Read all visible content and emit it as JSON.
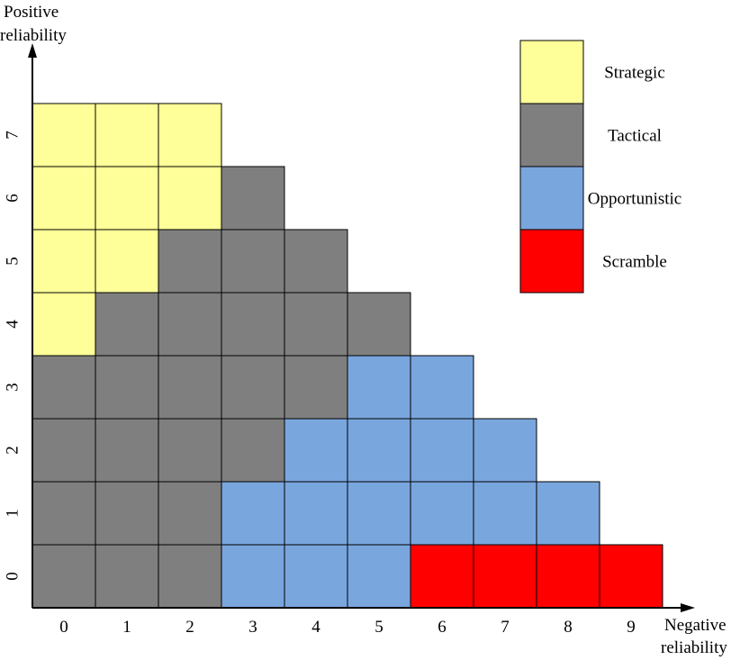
{
  "chart_data": {
    "type": "heatmap",
    "xlabel": [
      "Negative",
      "reliability"
    ],
    "ylabel": [
      "Positive",
      "reliability"
    ],
    "x_ticks": [
      "0",
      "1",
      "2",
      "3",
      "4",
      "5",
      "6",
      "7",
      "8",
      "9"
    ],
    "y_ticks": [
      "0",
      "1",
      "2",
      "3",
      "4",
      "5",
      "6",
      "7"
    ],
    "legend": [
      {
        "name": "Strategic",
        "color": "#ffff99"
      },
      {
        "name": "Tactical",
        "color": "#7f7f7f"
      },
      {
        "name": "Opportunistic",
        "color": "#7aa6de"
      },
      {
        "name": "Scramble",
        "color": "#ff0000"
      }
    ],
    "legend_position": "top-right",
    "rows": [
      {
        "y": 0,
        "cells": [
          "Tactical",
          "Tactical",
          "Tactical",
          "Opportunistic",
          "Opportunistic",
          "Opportunistic",
          "Scramble",
          "Scramble",
          "Scramble",
          "Scramble"
        ]
      },
      {
        "y": 1,
        "cells": [
          "Tactical",
          "Tactical",
          "Tactical",
          "Opportunistic",
          "Opportunistic",
          "Opportunistic",
          "Opportunistic",
          "Opportunistic",
          "Opportunistic"
        ]
      },
      {
        "y": 2,
        "cells": [
          "Tactical",
          "Tactical",
          "Tactical",
          "Tactical",
          "Opportunistic",
          "Opportunistic",
          "Opportunistic",
          "Opportunistic"
        ]
      },
      {
        "y": 3,
        "cells": [
          "Tactical",
          "Tactical",
          "Tactical",
          "Tactical",
          "Tactical",
          "Opportunistic",
          "Opportunistic"
        ]
      },
      {
        "y": 4,
        "cells": [
          "Strategic",
          "Tactical",
          "Tactical",
          "Tactical",
          "Tactical",
          "Tactical"
        ]
      },
      {
        "y": 5,
        "cells": [
          "Strategic",
          "Strategic",
          "Tactical",
          "Tactical",
          "Tactical"
        ]
      },
      {
        "y": 6,
        "cells": [
          "Strategic",
          "Strategic",
          "Strategic",
          "Tactical"
        ]
      },
      {
        "y": 7,
        "cells": [
          "Strategic",
          "Strategic",
          "Strategic"
        ]
      }
    ]
  }
}
